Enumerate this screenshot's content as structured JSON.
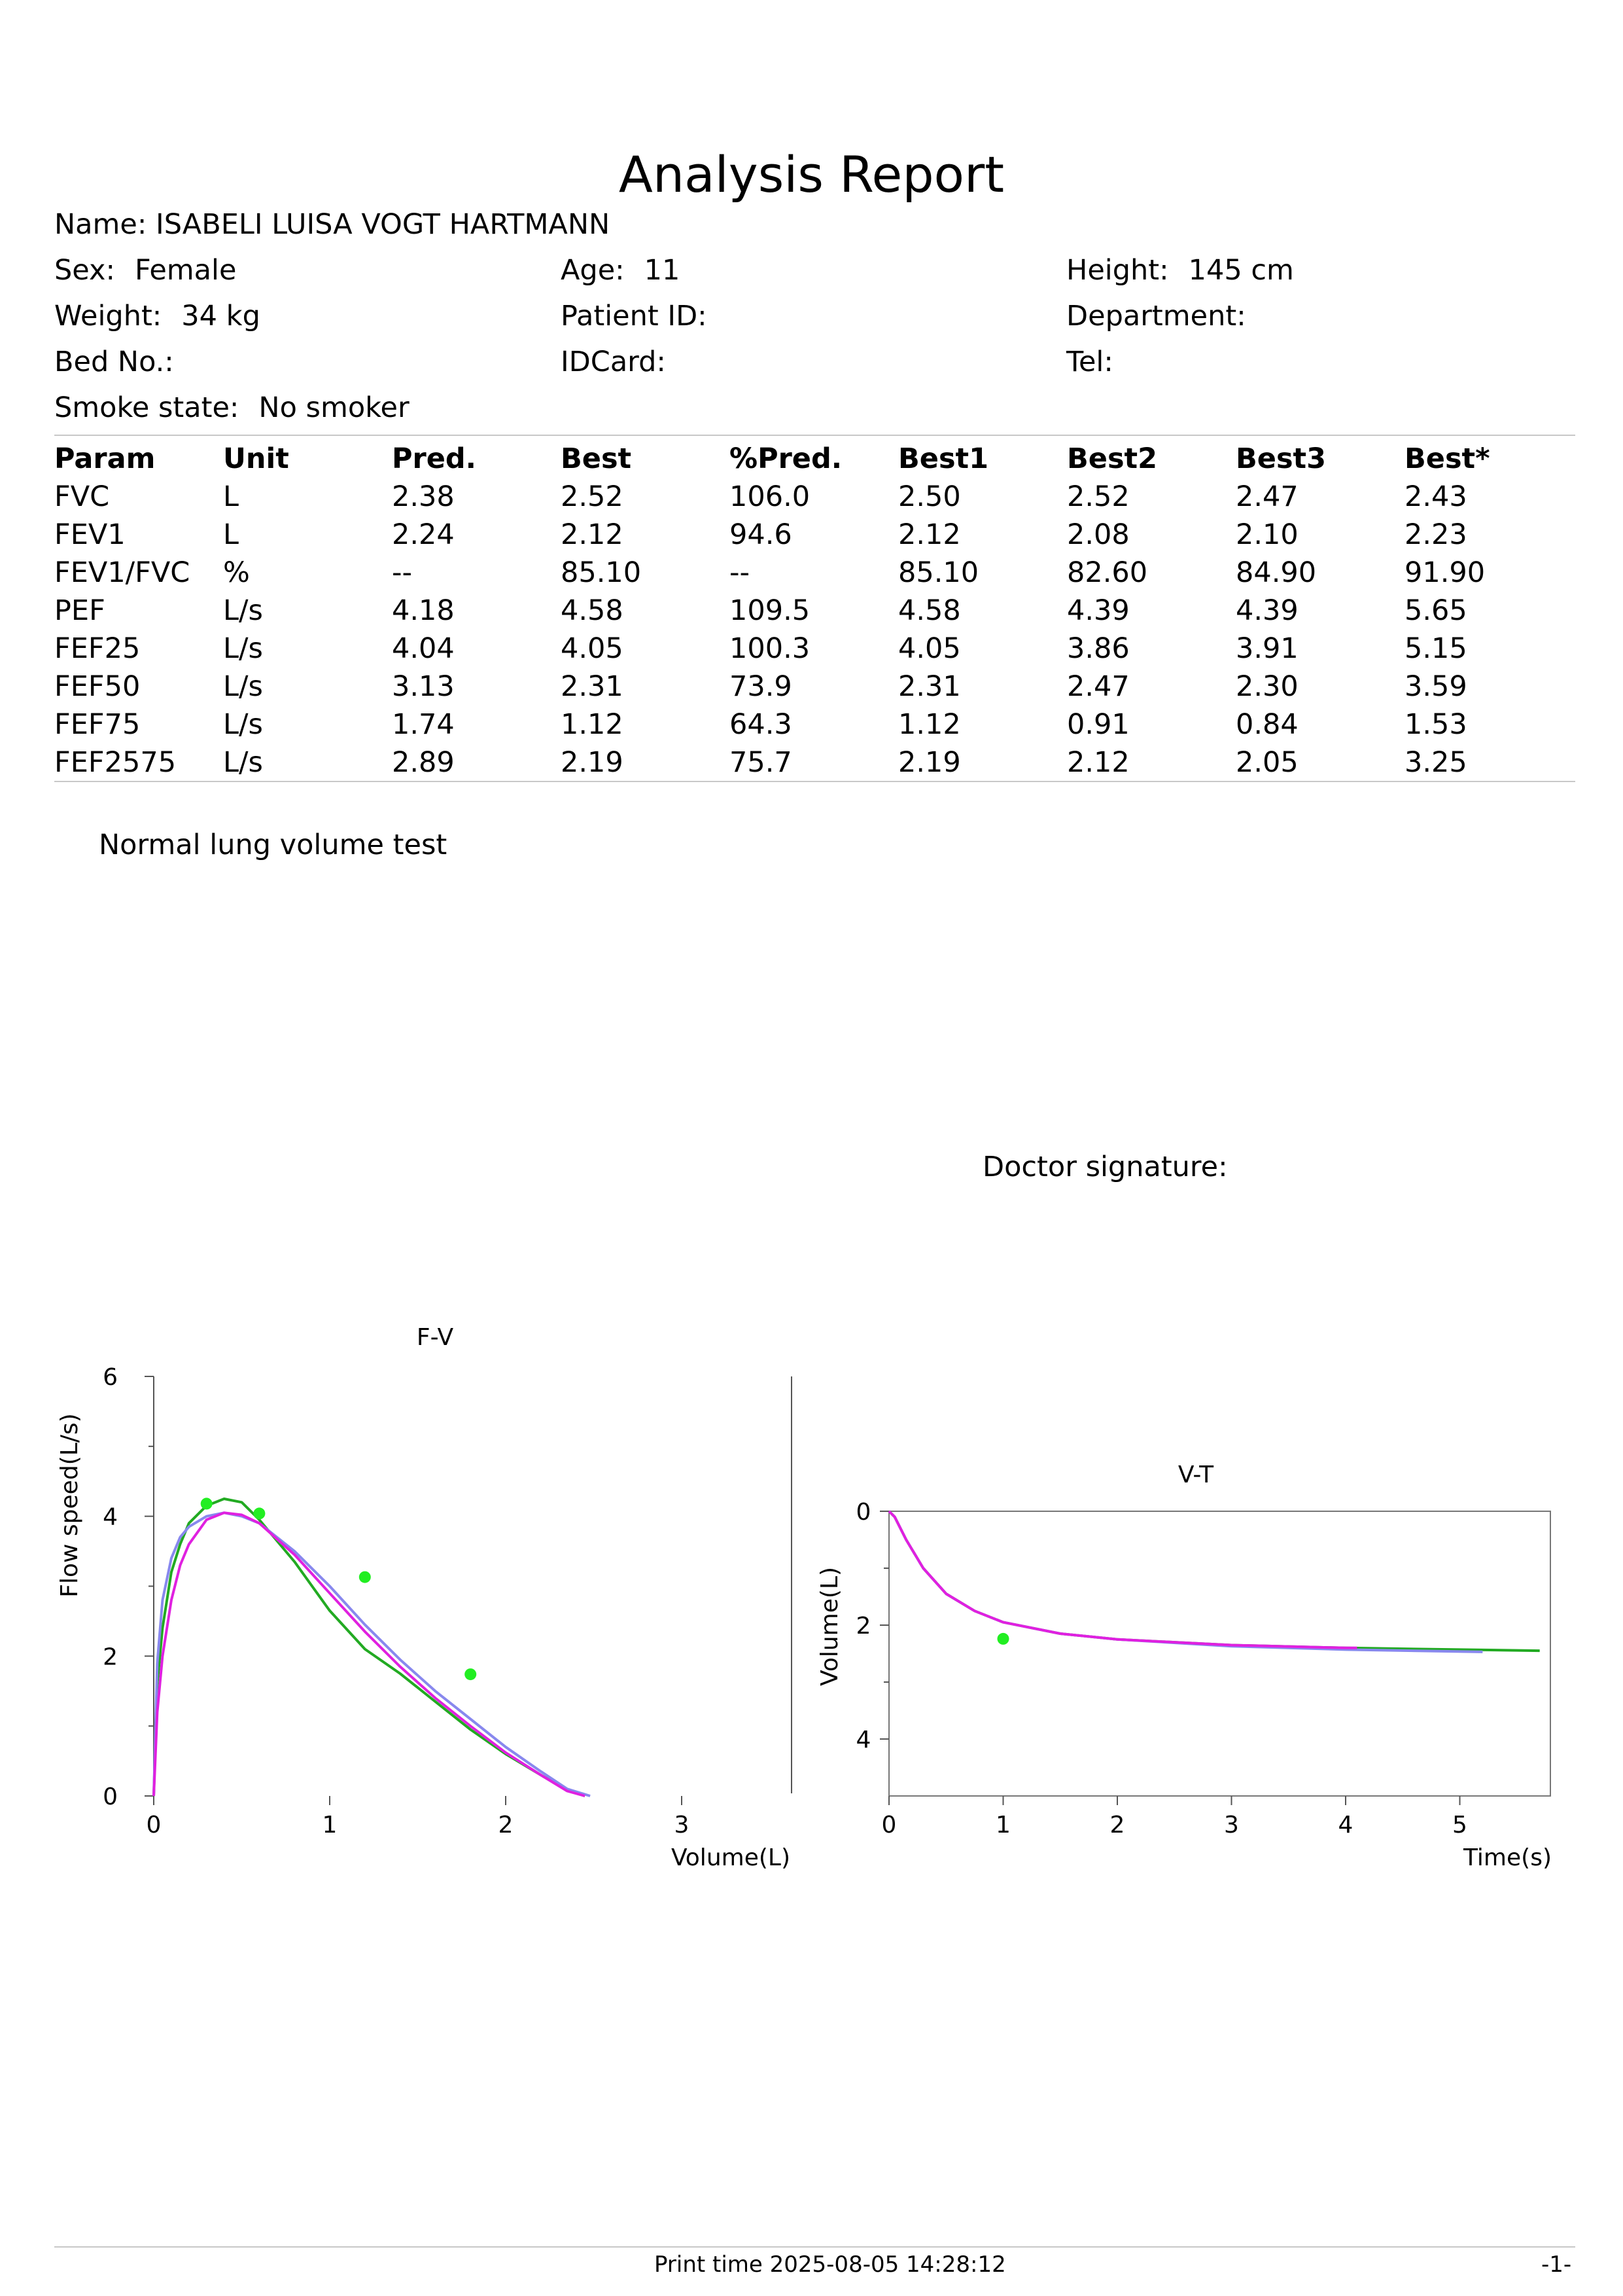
{
  "report": {
    "title": "Analysis Report",
    "name_label": "Name:",
    "name": "ISABELI LUISA VOGT HARTMANN",
    "fields": [
      {
        "label": "Sex:",
        "value": "Female"
      },
      {
        "label": "Age:",
        "value": "11"
      },
      {
        "label": "Height:",
        "value": "145 cm"
      },
      {
        "label": "Weight:",
        "value": "34 kg"
      },
      {
        "label": "Patient ID:",
        "value": ""
      },
      {
        "label": "Department:",
        "value": ""
      },
      {
        "label": "Bed No.:",
        "value": ""
      },
      {
        "label": "IDCard:",
        "value": ""
      },
      {
        "label": "Tel:",
        "value": ""
      },
      {
        "label": "Smoke state:",
        "value": "No smoker"
      }
    ]
  },
  "table": {
    "headers": [
      "Param",
      "Unit",
      "Pred.",
      "Best",
      "%Pred.",
      "Best1",
      "Best2",
      "Best3",
      "Best*"
    ],
    "rows": [
      [
        "FVC",
        "L",
        "2.38",
        "2.52",
        "106.0",
        "2.50",
        "2.52",
        "2.47",
        "2.43"
      ],
      [
        "FEV1",
        "L",
        "2.24",
        "2.12",
        "94.6",
        "2.12",
        "2.08",
        "2.10",
        "2.23"
      ],
      [
        "FEV1/FVC",
        "%",
        "--",
        "85.10",
        "--",
        "85.10",
        "82.60",
        "84.90",
        "91.90"
      ],
      [
        "PEF",
        "L/s",
        "4.18",
        "4.58",
        "109.5",
        "4.58",
        "4.39",
        "4.39",
        "5.65"
      ],
      [
        "FEF25",
        "L/s",
        "4.04",
        "4.05",
        "100.3",
        "4.05",
        "3.86",
        "3.91",
        "5.15"
      ],
      [
        "FEF50",
        "L/s",
        "3.13",
        "2.31",
        "73.9",
        "2.31",
        "2.47",
        "2.30",
        "3.59"
      ],
      [
        "FEF75",
        "L/s",
        "1.74",
        "1.12",
        "64.3",
        "1.12",
        "0.91",
        "0.84",
        "1.53"
      ],
      [
        "FEF2575",
        "L/s",
        "2.89",
        "2.19",
        "75.7",
        "2.19",
        "2.12",
        "2.05",
        "3.25"
      ]
    ]
  },
  "interpretation": "Normal lung volume test",
  "doctor_signature_label": "Doctor signature:",
  "footer": {
    "print_time": "Print time 2025-08-05 14:28:12",
    "page": "-1-"
  },
  "colors": {
    "trial_green": "#22aa22",
    "trial_blue": "#8888ee",
    "trial_magenta": "#e020e0",
    "predicted_points": "#22ee22"
  },
  "chart_data": [
    {
      "type": "line",
      "title": "F-V",
      "xlabel": "Volume(L)",
      "ylabel": "Flow speed(L/s)",
      "xlim": [
        0,
        3
      ],
      "ylim": [
        0,
        6
      ],
      "xticks": [
        0,
        1,
        2,
        3
      ],
      "yticks": [
        0,
        2,
        4,
        6
      ],
      "series": [
        {
          "color": "#22aa22",
          "x": [
            0,
            0.02,
            0.05,
            0.1,
            0.15,
            0.2,
            0.3,
            0.4,
            0.5,
            0.6,
            0.8,
            1.0,
            1.2,
            1.4,
            1.6,
            1.8,
            2.0,
            2.2,
            2.35,
            2.45
          ],
          "y": [
            0,
            1.6,
            2.4,
            3.2,
            3.6,
            3.9,
            4.15,
            4.25,
            4.2,
            3.95,
            3.35,
            2.65,
            2.1,
            1.75,
            1.35,
            0.95,
            0.6,
            0.3,
            0.08,
            0
          ]
        },
        {
          "color": "#8888ee",
          "x": [
            0,
            0.02,
            0.05,
            0.1,
            0.15,
            0.2,
            0.3,
            0.4,
            0.5,
            0.6,
            0.8,
            1.0,
            1.2,
            1.4,
            1.6,
            1.8,
            2.0,
            2.2,
            2.35,
            2.48
          ],
          "y": [
            0,
            1.9,
            2.8,
            3.4,
            3.7,
            3.85,
            4.0,
            4.05,
            4.0,
            3.9,
            3.5,
            3.0,
            2.45,
            1.95,
            1.5,
            1.1,
            0.7,
            0.35,
            0.1,
            0
          ]
        },
        {
          "color": "#e020e0",
          "x": [
            0,
            0.02,
            0.05,
            0.1,
            0.15,
            0.2,
            0.3,
            0.4,
            0.5,
            0.6,
            0.8,
            1.0,
            1.2,
            1.4,
            1.6,
            1.8,
            2.0,
            2.2,
            2.35,
            2.45
          ],
          "y": [
            0,
            1.2,
            2.0,
            2.8,
            3.3,
            3.6,
            3.95,
            4.05,
            4.02,
            3.9,
            3.45,
            2.9,
            2.35,
            1.85,
            1.4,
            1.0,
            0.62,
            0.3,
            0.07,
            0
          ]
        }
      ],
      "points": {
        "color": "#22ee22",
        "x": [
          0.3,
          0.6,
          1.2,
          1.8
        ],
        "y": [
          4.18,
          4.04,
          3.13,
          1.74
        ]
      }
    },
    {
      "type": "line",
      "title": "V-T",
      "xlabel": "Time(s)",
      "ylabel": "Volume(L)",
      "xlim": [
        0,
        5.8
      ],
      "ylim": [
        0,
        5
      ],
      "y_inverted": true,
      "xticks": [
        0,
        1,
        2,
        3,
        4,
        5
      ],
      "yticks": [
        0,
        2,
        4
      ],
      "series": [
        {
          "color": "#22aa22",
          "x": [
            0,
            0.05,
            0.15,
            0.3,
            0.5,
            0.75,
            1.0,
            1.5,
            2.0,
            3.0,
            4.0,
            5.0,
            5.7
          ],
          "y": [
            0,
            0.1,
            0.5,
            1.0,
            1.45,
            1.75,
            1.95,
            2.15,
            2.25,
            2.35,
            2.4,
            2.43,
            2.45
          ]
        },
        {
          "color": "#8888ee",
          "x": [
            0,
            0.05,
            0.15,
            0.3,
            0.5,
            0.75,
            1.0,
            1.5,
            2.0,
            3.0,
            4.0,
            5.2
          ],
          "y": [
            0,
            0.1,
            0.5,
            1.0,
            1.45,
            1.75,
            1.95,
            2.15,
            2.25,
            2.37,
            2.43,
            2.47
          ]
        },
        {
          "color": "#e020e0",
          "x": [
            0,
            0.05,
            0.15,
            0.3,
            0.5,
            0.75,
            1.0,
            1.5,
            2.0,
            3.0,
            4.0,
            4.1
          ],
          "y": [
            0,
            0.1,
            0.5,
            1.0,
            1.45,
            1.75,
            1.95,
            2.15,
            2.25,
            2.35,
            2.4,
            2.4
          ]
        }
      ],
      "points": {
        "color": "#22ee22",
        "x": [
          1.0
        ],
        "y": [
          2.24
        ]
      }
    }
  ]
}
